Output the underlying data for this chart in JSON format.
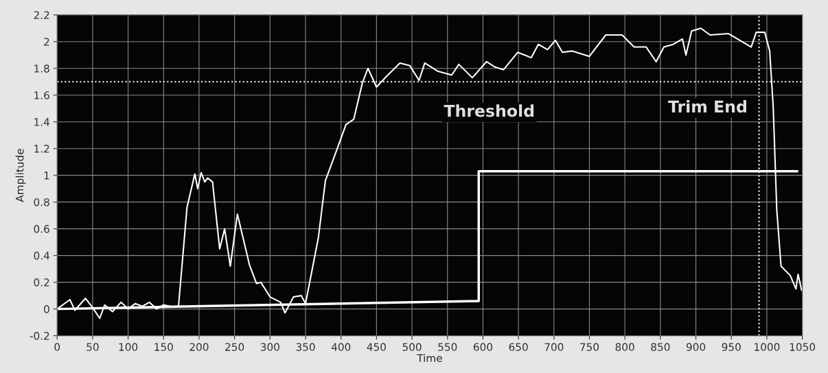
{
  "chart_data": {
    "type": "line",
    "xlabel": "Time",
    "ylabel": "Amplitude",
    "xlim": [
      0,
      1050
    ],
    "ylim": [
      -0.2,
      2.2
    ],
    "xticks": [
      0,
      50,
      100,
      150,
      200,
      250,
      300,
      350,
      400,
      450,
      500,
      550,
      600,
      650,
      700,
      750,
      800,
      850,
      900,
      950,
      1000,
      1050
    ],
    "yticks": [
      -0.2,
      0,
      0.2,
      0.4,
      0.6,
      0.8,
      1,
      1.2,
      1.4,
      1.6,
      1.8,
      2,
      2.2
    ],
    "grid": true,
    "marker": "none",
    "series": [
      {
        "color": "#ffffff",
        "line_style": "solid",
        "x": [
          0,
          18,
          25,
          40,
          50,
          60,
          67,
          78,
          90,
          100,
          110,
          120,
          130,
          140,
          150,
          160,
          171,
          183,
          194,
          198,
          203,
          208,
          212,
          219,
          229,
          236,
          244,
          254,
          271,
          281,
          287,
          300,
          315,
          321,
          333,
          344,
          350,
          368,
          378,
          394,
          407,
          418,
          430,
          438,
          450,
          464,
          483,
          497,
          510,
          518,
          536,
          556,
          566,
          585,
          605,
          617,
          629,
          649,
          668,
          678,
          691,
          702,
          712,
          726,
          750,
          773,
          796,
          813,
          830,
          844,
          855,
          868,
          881,
          886,
          894,
          907,
          920,
          946,
          962,
          978,
          985,
          997,
          1004,
          1009,
          1014,
          1020,
          1033,
          1041,
          1044,
          1049
        ],
        "values": [
          0,
          0.07,
          -0.01,
          0.08,
          0.01,
          -0.07,
          0.03,
          -0.02,
          0.05,
          0.0,
          0.04,
          0.02,
          0.05,
          0.0,
          0.03,
          0.02,
          0.02,
          0.76,
          1.01,
          0.9,
          1.02,
          0.95,
          0.98,
          0.95,
          0.45,
          0.6,
          0.32,
          0.71,
          0.33,
          0.19,
          0.2,
          0.09,
          0.05,
          -0.03,
          0.09,
          0.1,
          0.04,
          0.53,
          0.96,
          1.19,
          1.38,
          1.42,
          1.69,
          1.8,
          1.66,
          1.74,
          1.84,
          1.82,
          1.71,
          1.84,
          1.78,
          1.75,
          1.83,
          1.73,
          1.85,
          1.81,
          1.79,
          1.92,
          1.88,
          1.98,
          1.94,
          2.01,
          1.92,
          1.93,
          1.89,
          2.05,
          2.05,
          1.96,
          1.96,
          1.85,
          1.96,
          1.98,
          2.02,
          1.9,
          2.08,
          2.1,
          2.05,
          2.06,
          2.01,
          1.96,
          2.07,
          2.07,
          1.93,
          1.51,
          0.74,
          0.32,
          0.25,
          0.15,
          0.26,
          0.14
        ]
      },
      {
        "color": "#ffffff",
        "line_style": "solid",
        "x": [
          0,
          594,
          594,
          1043
        ],
        "values": [
          0,
          0.06,
          1.03,
          1.03
        ]
      }
    ],
    "ref_lines": [
      {
        "axis": "y",
        "value": 1.7,
        "color": "#ffffff",
        "line_style": "dotted",
        "label": "Threshold"
      },
      {
        "axis": "x",
        "value": 989,
        "color": "#ffffff",
        "line_style": "dotted",
        "label": "Trim End"
      }
    ]
  }
}
